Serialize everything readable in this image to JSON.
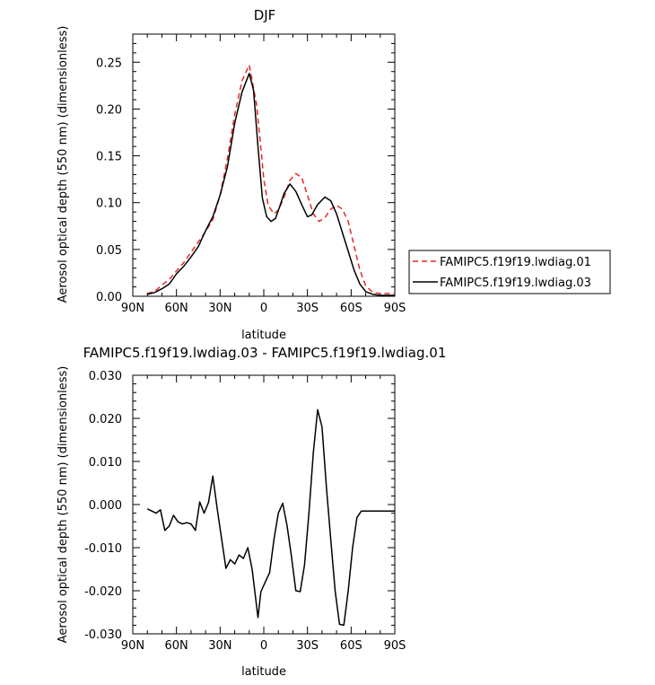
{
  "chart_data": [
    {
      "type": "line",
      "title": "DJF",
      "xlabel": "latitude",
      "ylabel": "Aerosol optical depth (550 nm) (dimensionless)",
      "xlim": [
        90,
        -90
      ],
      "ylim": [
        0,
        0.28
      ],
      "x_ticks": [
        90,
        60,
        30,
        0,
        -30,
        -60,
        -90
      ],
      "x_tick_labels": [
        "90N",
        "60N",
        "30N",
        "0",
        "30S",
        "60S",
        "90S"
      ],
      "y_ticks": [
        0,
        0.05,
        0.1,
        0.15,
        0.2,
        0.25
      ],
      "y_tick_labels": [
        "0.00",
        "0.05",
        "0.10",
        "0.15",
        "0.20",
        "0.25"
      ],
      "legend_position": "right",
      "series": [
        {
          "name": "FAMIPC5.f19f19.lwdiag.01",
          "color": "#e8262a",
          "dash": "dashed",
          "points": [
            [
              80,
              0.003
            ],
            [
              75,
              0.005
            ],
            [
              70,
              0.012
            ],
            [
              65,
              0.018
            ],
            [
              60,
              0.027
            ],
            [
              55,
              0.036
            ],
            [
              50,
              0.047
            ],
            [
              45,
              0.058
            ],
            [
              40,
              0.069
            ],
            [
              35,
              0.082
            ],
            [
              30,
              0.108
            ],
            [
              25,
              0.147
            ],
            [
              20,
              0.194
            ],
            [
              15,
              0.23
            ],
            [
              10,
              0.247
            ],
            [
              5,
              0.205
            ],
            [
              2,
              0.158
            ],
            [
              0,
              0.125
            ],
            [
              -3,
              0.097
            ],
            [
              -7,
              0.088
            ],
            [
              -10,
              0.092
            ],
            [
              -14,
              0.106
            ],
            [
              -18,
              0.124
            ],
            [
              -22,
              0.131
            ],
            [
              -26,
              0.127
            ],
            [
              -30,
              0.108
            ],
            [
              -34,
              0.088
            ],
            [
              -38,
              0.08
            ],
            [
              -42,
              0.084
            ],
            [
              -46,
              0.093
            ],
            [
              -50,
              0.097
            ],
            [
              -54,
              0.093
            ],
            [
              -58,
              0.08
            ],
            [
              -62,
              0.054
            ],
            [
              -66,
              0.028
            ],
            [
              -70,
              0.011
            ],
            [
              -75,
              0.004
            ],
            [
              -80,
              0.003
            ],
            [
              -85,
              0.003
            ],
            [
              -90,
              0.003
            ]
          ]
        },
        {
          "name": "FAMIPC5.f19f19.lwdiag.03",
          "color": "#000000",
          "dash": "solid",
          "points": [
            [
              80,
              0.002
            ],
            [
              75,
              0.004
            ],
            [
              70,
              0.008
            ],
            [
              65,
              0.013
            ],
            [
              60,
              0.024
            ],
            [
              55,
              0.032
            ],
            [
              50,
              0.042
            ],
            [
              45,
              0.053
            ],
            [
              40,
              0.07
            ],
            [
              35,
              0.085
            ],
            [
              30,
              0.108
            ],
            [
              25,
              0.138
            ],
            [
              20,
              0.185
            ],
            [
              15,
              0.218
            ],
            [
              10,
              0.238
            ],
            [
              7,
              0.22
            ],
            [
              4,
              0.16
            ],
            [
              1,
              0.105
            ],
            [
              -2,
              0.085
            ],
            [
              -5,
              0.08
            ],
            [
              -8,
              0.083
            ],
            [
              -11,
              0.096
            ],
            [
              -14,
              0.11
            ],
            [
              -18,
              0.12
            ],
            [
              -22,
              0.112
            ],
            [
              -26,
              0.098
            ],
            [
              -30,
              0.085
            ],
            [
              -33,
              0.087
            ],
            [
              -37,
              0.098
            ],
            [
              -42,
              0.106
            ],
            [
              -46,
              0.102
            ],
            [
              -50,
              0.088
            ],
            [
              -54,
              0.068
            ],
            [
              -58,
              0.048
            ],
            [
              -62,
              0.028
            ],
            [
              -66,
              0.013
            ],
            [
              -70,
              0.005
            ],
            [
              -75,
              0.002
            ],
            [
              -80,
              0.001
            ],
            [
              -85,
              0.001
            ],
            [
              -90,
              0.001
            ]
          ]
        }
      ]
    },
    {
      "type": "line",
      "title": "FAMIPC5.f19f19.lwdiag.03 - FAMIPC5.f19f19.lwdiag.01",
      "xlabel": "latitude",
      "ylabel": "Aerosol optical depth (550 nm) (dimensionless)",
      "xlim": [
        90,
        -90
      ],
      "ylim": [
        -0.03,
        0.03
      ],
      "x_ticks": [
        90,
        60,
        30,
        0,
        -30,
        -60,
        -90
      ],
      "x_tick_labels": [
        "90N",
        "60N",
        "30N",
        "0",
        "30S",
        "60S",
        "90S"
      ],
      "y_ticks": [
        -0.03,
        -0.02,
        -0.01,
        0,
        0.01,
        0.02,
        0.03
      ],
      "y_tick_labels": [
        "-0.030",
        "-0.020",
        "-0.010",
        "0.000",
        "0.010",
        "0.020",
        "0.030"
      ],
      "series": [
        {
          "color": "#000000",
          "dash": "solid",
          "points": [
            [
              80,
              -0.001
            ],
            [
              77,
              -0.0015
            ],
            [
              74,
              -0.002
            ],
            [
              71,
              -0.0012
            ],
            [
              68,
              -0.006
            ],
            [
              65,
              -0.005
            ],
            [
              62,
              -0.0025
            ],
            [
              59,
              -0.004
            ],
            [
              56,
              -0.0045
            ],
            [
              53,
              -0.0042
            ],
            [
              50,
              -0.0045
            ],
            [
              47,
              -0.006
            ],
            [
              44,
              0.0006
            ],
            [
              41,
              -0.002
            ],
            [
              38,
              0.0005
            ],
            [
              35,
              0.0066
            ],
            [
              32,
              -0.001
            ],
            [
              29,
              -0.008
            ],
            [
              26,
              -0.0148
            ],
            [
              23,
              -0.0128
            ],
            [
              20,
              -0.0138
            ],
            [
              17,
              -0.0117
            ],
            [
              14,
              -0.0125
            ],
            [
              11,
              -0.01
            ],
            [
              8,
              -0.015
            ],
            [
              4,
              -0.0262
            ],
            [
              2,
              -0.0202
            ],
            [
              -1,
              -0.018
            ],
            [
              -4,
              -0.0158
            ],
            [
              -7,
              -0.008
            ],
            [
              -10,
              -0.002
            ],
            [
              -13,
              0.0003
            ],
            [
              -16,
              -0.005
            ],
            [
              -19,
              -0.012
            ],
            [
              -22,
              -0.02
            ],
            [
              -25,
              -0.0202
            ],
            [
              -28,
              -0.014
            ],
            [
              -31,
              -0.002
            ],
            [
              -34,
              0.012
            ],
            [
              -37,
              0.022
            ],
            [
              -40,
              0.018
            ],
            [
              -43,
              0.004
            ],
            [
              -46,
              -0.008
            ],
            [
              -49,
              -0.02
            ],
            [
              -52,
              -0.0278
            ],
            [
              -55,
              -0.028
            ],
            [
              -58,
              -0.02
            ],
            [
              -61,
              -0.01
            ],
            [
              -64,
              -0.003
            ],
            [
              -67,
              -0.0015
            ],
            [
              -70,
              -0.0015
            ],
            [
              -75,
              -0.0015
            ],
            [
              -80,
              -0.0015
            ],
            [
              -85,
              -0.0015
            ],
            [
              -90,
              -0.0015
            ]
          ]
        }
      ]
    }
  ]
}
